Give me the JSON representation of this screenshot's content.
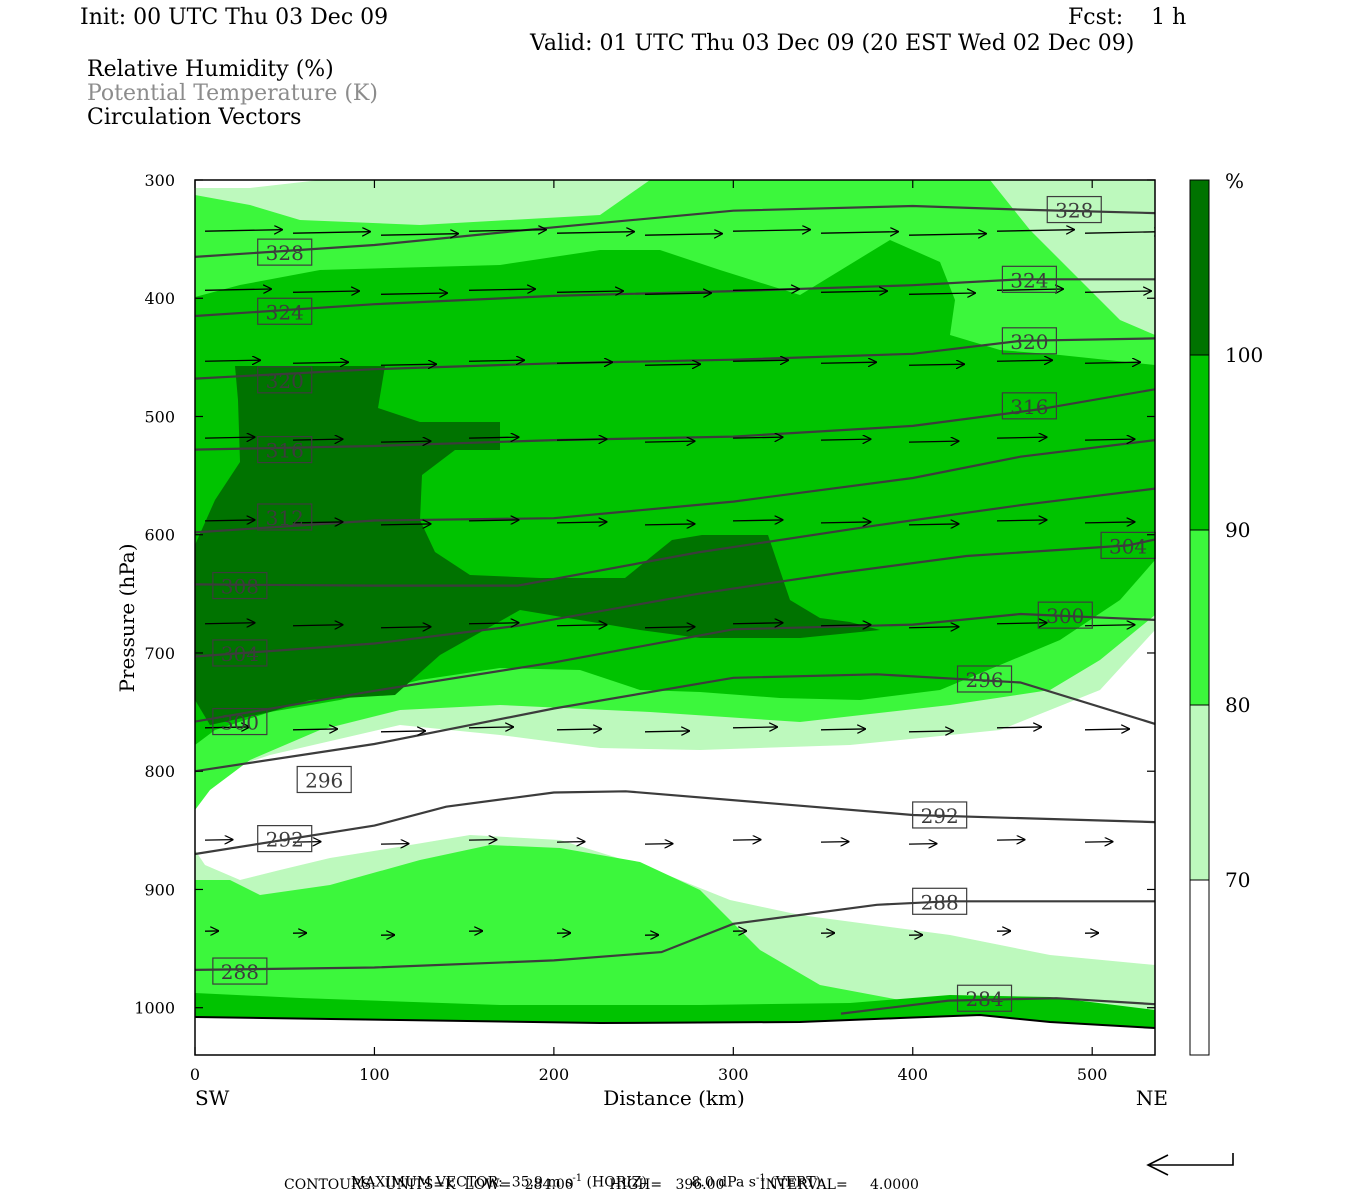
{
  "header": {
    "init": "Init: 00 UTC Thu 03 Dec 09",
    "fcst": "Fcst:    1 h",
    "valid": "Valid: 01 UTC Thu 03 Dec 09 (20 EST Wed 02 Dec 09)",
    "fields": [
      "Relative Humidity (%)",
      "Potential Temperature (K)",
      "Circulation Vectors"
    ]
  },
  "colors": {
    "rh_70_80": "#bdf9bd",
    "rh_80_90": "#3cf73c",
    "rh_90_100": "#00c300",
    "rh_100": "#007300",
    "contour": "#3c3c3c"
  },
  "chart_data": {
    "type": "cross-section",
    "xlabel": "Distance (km)",
    "ylabel": "Pressure (hPa)",
    "x_ticks": [
      0,
      100,
      200,
      300,
      400,
      500
    ],
    "y_ticks": [
      300,
      400,
      500,
      600,
      700,
      800,
      900,
      1000
    ],
    "xlim": [
      0,
      535
    ],
    "ylim": [
      300,
      1040
    ],
    "y_reversed": true,
    "x_end_labels": {
      "left": "SW",
      "right": "NE"
    },
    "colorbar": {
      "unit": "%",
      "levels": [
        70,
        80,
        90,
        100
      ]
    },
    "theta_contours": [
      {
        "value": 328,
        "label_at": [
          50,
          360
        ],
        "points": [
          [
            0,
            365
          ],
          [
            100,
            355
          ],
          [
            200,
            340
          ],
          [
            300,
            326
          ],
          [
            400,
            322
          ],
          [
            460,
            325
          ],
          [
            535,
            328
          ]
        ]
      },
      {
        "value": 324,
        "label_at": [
          50,
          410
        ],
        "points": [
          [
            0,
            415
          ],
          [
            100,
            405
          ],
          [
            200,
            398
          ],
          [
            300,
            394
          ],
          [
            400,
            389
          ],
          [
            460,
            384
          ],
          [
            535,
            384
          ]
        ]
      },
      {
        "value": 320,
        "label_at": [
          50,
          468
        ],
        "points": [
          [
            0,
            468
          ],
          [
            100,
            460
          ],
          [
            200,
            455
          ],
          [
            300,
            452
          ],
          [
            400,
            447
          ],
          [
            460,
            436
          ],
          [
            535,
            434
          ]
        ]
      },
      {
        "value": 316,
        "label_at": [
          50,
          528
        ],
        "points": [
          [
            0,
            528
          ],
          [
            100,
            525
          ],
          [
            200,
            520
          ],
          [
            300,
            517
          ],
          [
            400,
            508
          ],
          [
            470,
            494
          ],
          [
            535,
            477
          ]
        ]
      },
      {
        "value": 312,
        "label_at": [
          50,
          587
        ],
        "points": [
          [
            0,
            598
          ],
          [
            100,
            588
          ],
          [
            200,
            586
          ],
          [
            300,
            572
          ],
          [
            400,
            552
          ],
          [
            460,
            534
          ],
          [
            535,
            520
          ]
        ]
      },
      {
        "value": 308,
        "label_at": [
          25,
          643
        ],
        "points": [
          [
            0,
            642
          ],
          [
            100,
            643
          ],
          [
            180,
            643
          ],
          [
            280,
            615
          ],
          [
            380,
            592
          ],
          [
            460,
            575
          ],
          [
            535,
            561
          ]
        ]
      },
      {
        "value": 304,
        "label_at": [
          25,
          700
        ],
        "points": [
          [
            0,
            703
          ],
          [
            100,
            692
          ],
          [
            180,
            677
          ],
          [
            280,
            650
          ],
          [
            360,
            632
          ],
          [
            430,
            618
          ],
          [
            520,
            609
          ],
          [
            535,
            604
          ]
        ]
      },
      {
        "value": 300,
        "label_at": [
          25,
          758
        ],
        "points": [
          [
            0,
            758
          ],
          [
            100,
            732
          ],
          [
            200,
            708
          ],
          [
            300,
            680
          ],
          [
            400,
            676
          ],
          [
            460,
            667
          ],
          [
            535,
            672
          ]
        ]
      },
      {
        "value": 296,
        "label_at": [
          72,
          807
        ],
        "points": [
          [
            0,
            800
          ],
          [
            100,
            777
          ],
          [
            200,
            747
          ],
          [
            300,
            721
          ],
          [
            380,
            718
          ],
          [
            460,
            725
          ],
          [
            535,
            760
          ]
        ]
      },
      {
        "value": 292,
        "label_at": [
          50,
          857
        ],
        "points": [
          [
            0,
            870
          ],
          [
            100,
            846
          ],
          [
            140,
            830
          ],
          [
            200,
            818
          ],
          [
            240,
            817
          ],
          [
            400,
            837
          ],
          [
            535,
            843
          ]
        ]
      },
      {
        "value": 288,
        "label_at": [
          25,
          969
        ],
        "points": [
          [
            0,
            968
          ],
          [
            100,
            966
          ],
          [
            200,
            960
          ],
          [
            260,
            953
          ],
          [
            300,
            929
          ],
          [
            380,
            913
          ],
          [
            420,
            910
          ],
          [
            535,
            910
          ]
        ]
      },
      {
        "value": 284,
        "label_at": [
          440,
          993
        ],
        "points": [
          [
            360,
            1005
          ],
          [
            420,
            994
          ],
          [
            480,
            992
          ],
          [
            535,
            997
          ]
        ]
      }
    ],
    "contour_label_boxes": [
      {
        "text": "328",
        "x": 490,
        "p": 325
      },
      {
        "text": "328",
        "x": 50,
        "p": 361
      },
      {
        "text": "324",
        "x": 465,
        "p": 384
      },
      {
        "text": "324",
        "x": 50,
        "p": 411
      },
      {
        "text": "320",
        "x": 465,
        "p": 436
      },
      {
        "text": "320",
        "x": 50,
        "p": 469
      },
      {
        "text": "316",
        "x": 465,
        "p": 491
      },
      {
        "text": "316",
        "x": 50,
        "p": 528
      },
      {
        "text": "312",
        "x": 50,
        "p": 585
      },
      {
        "text": "308",
        "x": 25,
        "p": 643
      },
      {
        "text": "304",
        "x": 520,
        "p": 609
      },
      {
        "text": "304",
        "x": 25,
        "p": 700
      },
      {
        "text": "300",
        "x": 485,
        "p": 668
      },
      {
        "text": "300",
        "x": 25,
        "p": 758
      },
      {
        "text": "296",
        "x": 440,
        "p": 722
      },
      {
        "text": "296",
        "x": 72,
        "p": 807
      },
      {
        "text": "292",
        "x": 415,
        "p": 837
      },
      {
        "text": "292",
        "x": 50,
        "p": 857
      },
      {
        "text": "288",
        "x": 415,
        "p": 910
      },
      {
        "text": "288",
        "x": 25,
        "p": 969
      },
      {
        "text": "284",
        "x": 440,
        "p": 992
      }
    ],
    "vector_rows": [
      {
        "p": 345,
        "dx": 0.07,
        "n": 11
      },
      {
        "p": 395,
        "dx": 0.06,
        "n": 11
      },
      {
        "p": 455,
        "dx": 0.05,
        "n": 11
      },
      {
        "p": 520,
        "dx": 0.045,
        "n": 11
      },
      {
        "p": 590,
        "dx": 0.045,
        "n": 11
      },
      {
        "p": 677,
        "dx": 0.045,
        "n": 11
      },
      {
        "p": 765,
        "dx": 0.04,
        "n": 11
      },
      {
        "p": 860,
        "dx": 0.025,
        "n": 11
      },
      {
        "p": 937,
        "dx": 0.012,
        "n": 11
      }
    ]
  },
  "footer": {
    "max_vector_label": "MAXIMUM VECTOR:",
    "horiz": "35.9 m s",
    "horiz_unit": "(HORIZ)",
    "vert": "8.0 dPa s",
    "vert_unit": "(VERT)",
    "exp": "-1",
    "contours": "CONTOURS:  UNITS=K  LOW=   284.00        HIGH=   396.00        INTERVAL=     4.0000"
  }
}
